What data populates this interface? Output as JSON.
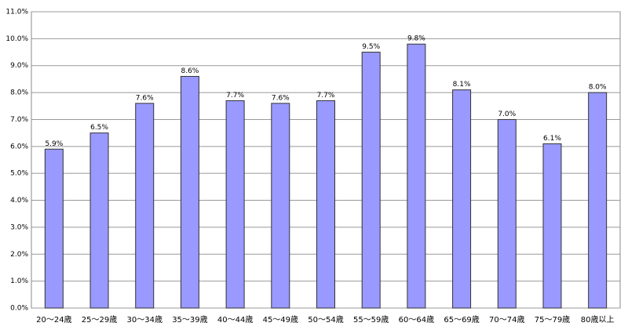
{
  "chart_data": {
    "type": "bar",
    "categories": [
      "20～24歳",
      "25～29歳",
      "30～34歳",
      "35～39歳",
      "40～44歳",
      "45～49歳",
      "50～54歳",
      "55～59歳",
      "60～64歳",
      "65～69歳",
      "70～74歳",
      "75～79歳",
      "80歳以上"
    ],
    "values": [
      5.9,
      6.5,
      7.6,
      8.6,
      7.7,
      7.6,
      7.7,
      9.5,
      9.8,
      8.1,
      7.0,
      6.1,
      8.0
    ],
    "value_labels": [
      "5.9%",
      "6.5%",
      "7.6%",
      "8.6%",
      "7.7%",
      "7.6%",
      "7.7%",
      "9.5%",
      "9.8%",
      "8.1%",
      "7.0%",
      "6.1%",
      "8.0%"
    ],
    "color": "#9999ff",
    "ylim": [
      0,
      11
    ],
    "yticks": [
      {
        "value": 0,
        "label": "0.0%"
      },
      {
        "value": 1,
        "label": "1.0%"
      },
      {
        "value": 2,
        "label": "2.0%"
      },
      {
        "value": 3,
        "label": "3.0%"
      },
      {
        "value": 4,
        "label": "4.0%"
      },
      {
        "value": 5,
        "label": "5.0%"
      },
      {
        "value": 6,
        "label": "6.0%"
      },
      {
        "value": 7,
        "label": "7.0%"
      },
      {
        "value": 8,
        "label": "8.0%"
      },
      {
        "value": 9,
        "label": "9.0%"
      },
      {
        "value": 10,
        "label": "10.0%"
      },
      {
        "value": 11,
        "label": "11.0%"
      }
    ],
    "grid": true
  }
}
